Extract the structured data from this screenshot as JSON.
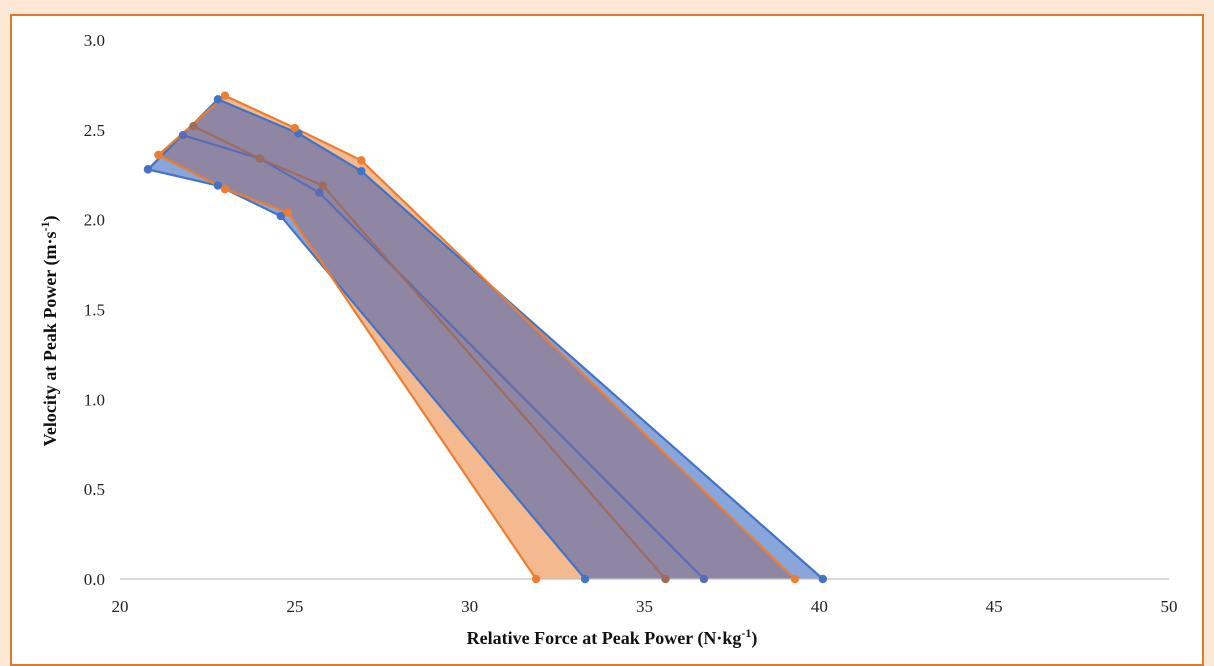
{
  "chart_data": {
    "type": "area",
    "xlabel": "Relative Force at Peak Power (N·kg",
    "xlabel_sup": "-1",
    "xlabel_end": ")",
    "ylabel": "Velocity at Peak Power (m·s",
    "ylabel_sup": "-1",
    "ylabel_end": ")",
    "xlim": [
      20,
      50
    ],
    "ylim": [
      0,
      3.0
    ],
    "xticks": [
      "20",
      "25",
      "30",
      "35",
      "40",
      "45",
      "50"
    ],
    "yticks": [
      "0.0",
      "0.5",
      "1.0",
      "1.5",
      "2.0",
      "2.5",
      "3.0"
    ],
    "grid": false,
    "legend": "none",
    "colors": {
      "blue": "#4472c4",
      "orange": "#ed7d31",
      "blue_fill": "#7b9bd8",
      "orange_fill": "#f4b183",
      "overlap": "#8f86a3",
      "brown_line": "#9e6b5e"
    },
    "series": [
      {
        "color": "blue",
        "upper": [
          [
            20.8,
            2.28
          ],
          [
            22.8,
            2.67
          ],
          [
            25.1,
            2.48
          ],
          [
            26.9,
            2.27
          ],
          [
            40.1,
            0.0
          ]
        ],
        "lower": [
          [
            20.8,
            2.28
          ],
          [
            22.8,
            2.19
          ],
          [
            24.6,
            2.02
          ],
          [
            33.3,
            0.0
          ]
        ],
        "mean": [
          [
            21.8,
            2.47
          ],
          [
            24.0,
            2.34
          ],
          [
            25.7,
            2.15
          ],
          [
            36.7,
            0.0
          ]
        ]
      },
      {
        "color": "orange",
        "upper": [
          [
            21.1,
            2.36
          ],
          [
            23.0,
            2.69
          ],
          [
            25.0,
            2.51
          ],
          [
            26.9,
            2.33
          ],
          [
            39.3,
            0.0
          ]
        ],
        "lower": [
          [
            21.1,
            2.36
          ],
          [
            23.0,
            2.17
          ],
          [
            24.8,
            2.04
          ],
          [
            31.9,
            0.0
          ]
        ],
        "mean": [
          [
            22.1,
            2.52
          ],
          [
            24.0,
            2.34
          ],
          [
            25.8,
            2.19
          ],
          [
            35.6,
            0.0
          ]
        ]
      }
    ]
  }
}
